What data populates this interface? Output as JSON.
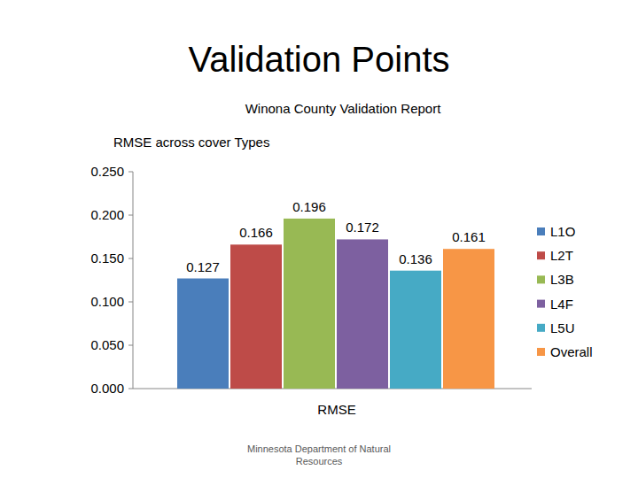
{
  "heading": "Validation Points",
  "footer": "Minnesota Department of Natural Resources",
  "chart_data": {
    "type": "bar",
    "title": "Winona County Validation Report",
    "subtitle": "RMSE across cover Types",
    "categories": [
      "RMSE"
    ],
    "series": [
      {
        "name": "L1O",
        "color": "#4a7ebb",
        "values": [
          0.127
        ]
      },
      {
        "name": "L2T",
        "color": "#be4b48",
        "values": [
          0.166
        ]
      },
      {
        "name": "L3B",
        "color": "#98b954",
        "values": [
          0.196
        ]
      },
      {
        "name": "L4F",
        "color": "#7d60a0",
        "values": [
          0.172
        ]
      },
      {
        "name": "L5U",
        "color": "#46aac5",
        "values": [
          0.136
        ]
      },
      {
        "name": "Overall",
        "color": "#f79646",
        "values": [
          0.161
        ]
      }
    ],
    "ylim": [
      0,
      0.25
    ],
    "yticks": [
      {
        "value": 0,
        "label": "0.000"
      },
      {
        "value": 0.05,
        "label": "0.050"
      },
      {
        "value": 0.1,
        "label": "0.100"
      },
      {
        "value": 0.15,
        "label": "0.150"
      },
      {
        "value": 0.2,
        "label": "0.200"
      },
      {
        "value": 0.25,
        "label": "0.250"
      }
    ],
    "grid": false,
    "legend": "right",
    "data_labels": true
  }
}
